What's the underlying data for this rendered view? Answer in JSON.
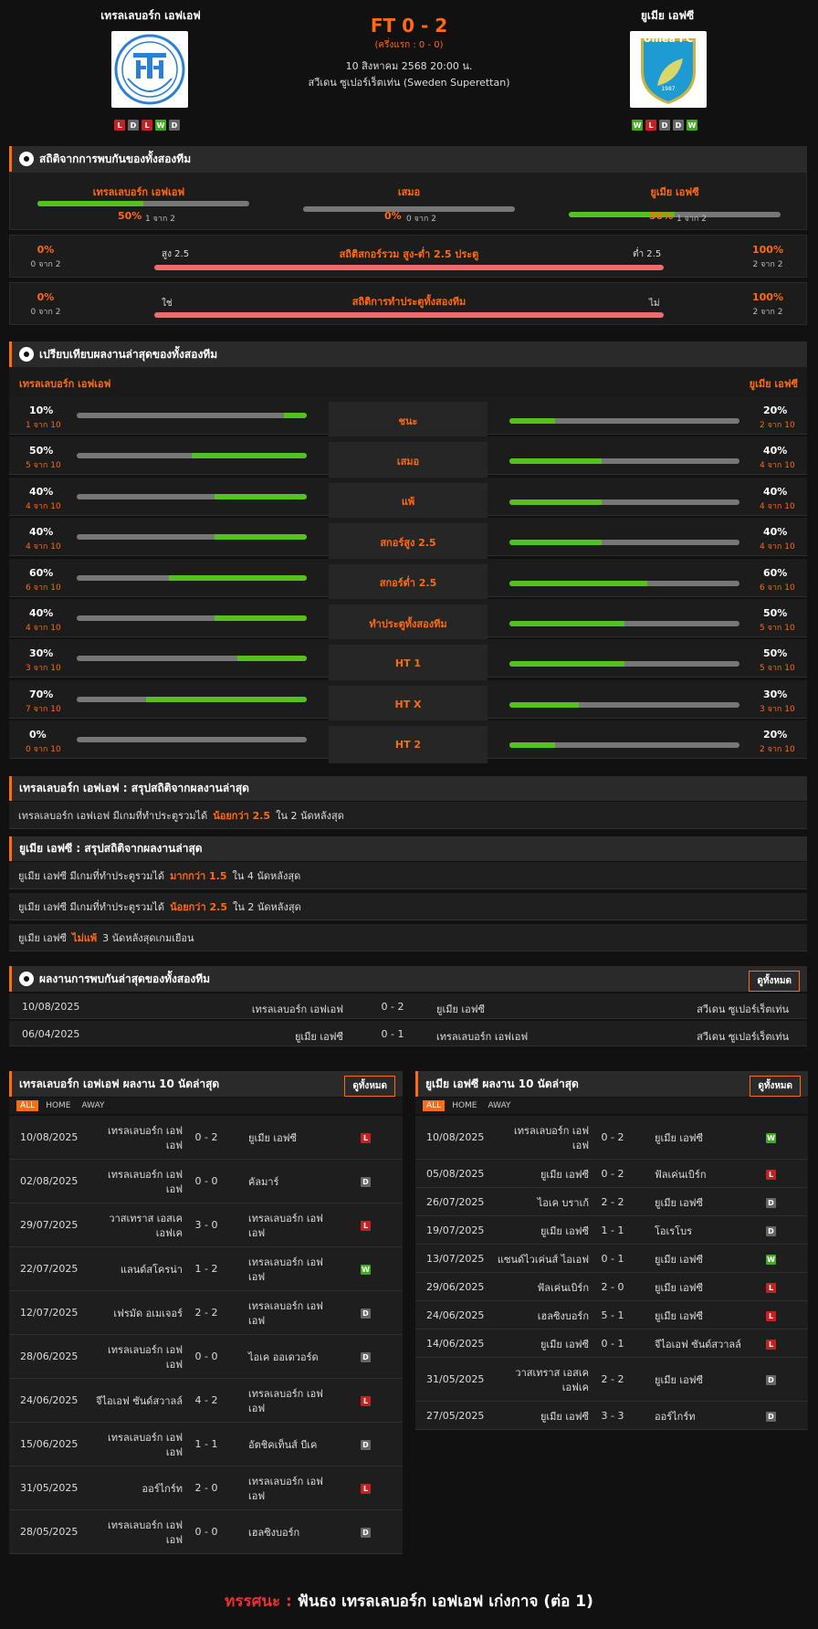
{
  "header": {
    "home": "เทรลเลบอร์ก เอฟเอฟ",
    "away": "ยูเมีย เอฟซี",
    "score": "FT 0 - 2",
    "halftime": "(ครึ่งแรก : 0 - 0)",
    "datetime": "10 สิงหาคม 2568 20:00 น.",
    "league": "สวีเดน ซูเปอร์เร็ตเท่น (Sweden Superettan)",
    "home_logo_text": "TRELLEBORGS FF",
    "away_logo_text": "Umeå FC",
    "away_logo_year": "1987",
    "home_form": [
      "L",
      "D",
      "L",
      "W",
      "D"
    ],
    "away_form": [
      "W",
      "L",
      "D",
      "D",
      "W"
    ]
  },
  "h2h_stats": {
    "title": "สถิติจากการพบกันของทั้งสองทีม",
    "home_label": "เทรลเลบอร์ก เอฟเอฟ",
    "home_pct": "50%",
    "home_sub": "1 จาก 2",
    "home_fill": 0.5,
    "draw_label": "เสมอ",
    "draw_pct": "0%",
    "draw_sub": "0 จาก 2",
    "draw_fill": 0,
    "away_label": "ยูเมีย เอฟซี",
    "away_pct": "50%",
    "away_sub": "1 จาก 2",
    "away_fill": 0.5,
    "ou": {
      "left_pct": "0%",
      "left_sub": "0 จาก 2",
      "left_label": "สูง 2.5",
      "title": "สถิติสกอร์รวม สูง-ต่ำ 2.5 ประตู",
      "right_label": "ต่ำ 2.5",
      "right_pct": "100%",
      "right_sub": "2 จาก 2"
    },
    "btts": {
      "left_pct": "0%",
      "left_sub": "0 จาก 2",
      "left_label": "ใช่",
      "title": "สถิติการทำประตูทั้งสองทีม",
      "right_label": "ไม่",
      "right_pct": "100%",
      "right_sub": "2 จาก 2"
    }
  },
  "compare": {
    "title": "เปรียบเทียบผลงานล่าสุดของทั้งสองทีม",
    "home": "เทรลเลบอร์ก เอฟเอฟ",
    "away": "ยูเมีย เอฟซี",
    "rows": [
      {
        "label": "ชนะ",
        "hp": "10%",
        "hs": "1 จาก 10",
        "hf": 0.1,
        "ap": "20%",
        "as": "2 จาก 10",
        "af": 0.2
      },
      {
        "label": "เสมอ",
        "hp": "50%",
        "hs": "5 จาก 10",
        "hf": 0.5,
        "ap": "40%",
        "as": "4 จาก 10",
        "af": 0.4
      },
      {
        "label": "แพ้",
        "hp": "40%",
        "hs": "4 จาก 10",
        "hf": 0.4,
        "ap": "40%",
        "as": "4 จาก 10",
        "af": 0.4
      },
      {
        "label": "สกอร์สูง 2.5",
        "hp": "40%",
        "hs": "4 จาก 10",
        "hf": 0.4,
        "ap": "40%",
        "as": "4 จาก 10",
        "af": 0.4
      },
      {
        "label": "สกอร์ต่ำ 2.5",
        "hp": "60%",
        "hs": "6 จาก 10",
        "hf": 0.6,
        "ap": "60%",
        "as": "6 จาก 10",
        "af": 0.6
      },
      {
        "label": "ทำประตูทั้งสองทีม",
        "hp": "40%",
        "hs": "4 จาก 10",
        "hf": 0.4,
        "ap": "50%",
        "as": "5 จาก 10",
        "af": 0.5
      },
      {
        "label": "HT 1",
        "hp": "30%",
        "hs": "3 จาก 10",
        "hf": 0.3,
        "ap": "50%",
        "as": "5 จาก 10",
        "af": 0.5
      },
      {
        "label": "HT X",
        "hp": "70%",
        "hs": "7 จาก 10",
        "hf": 0.7,
        "ap": "30%",
        "as": "3 จาก 10",
        "af": 0.3
      },
      {
        "label": "HT 2",
        "hp": "0%",
        "hs": "0 จาก 10",
        "hf": 0,
        "ap": "20%",
        "as": "2 จาก 10",
        "af": 0.2
      }
    ]
  },
  "summary_home": {
    "title": "เทรลเลบอร์ก เอฟเอฟ : สรุปสถิติจากผลงานล่าสุด",
    "lines": [
      {
        "pre": "เทรลเลบอร์ก เอฟเอฟ  มีเกมที่ทำประตูรวมได้",
        "hl": "น้อยกว่า  2.5",
        "post": "ใน 2 นัดหลังสุด"
      }
    ]
  },
  "summary_away": {
    "title": "ยูเมีย เอฟซี : สรุปสถิติจากผลงานล่าสุด",
    "lines": [
      {
        "pre": "ยูเมีย เอฟซี  มีเกมที่ทำประตูรวมได้",
        "hl": "มากกว่า  1.5",
        "post": "ใน 4 นัดหลังสุด"
      },
      {
        "pre": "ยูเมีย เอฟซี  มีเกมที่ทำประตูรวมได้",
        "hl": "น้อยกว่า  2.5",
        "post": "ใน 2 นัดหลังสุด"
      },
      {
        "pre": "ยูเมีย เอฟซี",
        "hl": "ไม่แพ้",
        "post": "3  นัดหลังสุดเกมเยือน"
      }
    ]
  },
  "h2h": {
    "title": "ผลงานการพบกันล่าสุดของทั้งสองทีม",
    "view_all": "ดูทั้งหมด",
    "rows": [
      {
        "date": "10/08/2025",
        "home": "เทรลเลบอร์ก เอฟเอฟ",
        "score": "0 - 2",
        "away": "ยูเมีย เอฟซี",
        "league": "สวีเดน ซูเปอร์เร็ตเท่น"
      },
      {
        "date": "06/04/2025",
        "home": "ยูเมีย เอฟซี",
        "score": "0 - 1",
        "away": "เทรลเลบอร์ก เอฟเอฟ",
        "league": "สวีเดน ซูเปอร์เร็ตเท่น"
      }
    ]
  },
  "last_home": {
    "title": "เทรลเลบอร์ก เอฟเอฟ ผลงาน 10 นัดล่าสุด",
    "view_all": "ดูทั้งหมด",
    "tabs": [
      "ALL",
      "HOME",
      "AWAY"
    ],
    "rows": [
      {
        "date": "10/08/2025",
        "home": "เทรลเลบอร์ก เอฟ\nเอฟ",
        "score": "0 - 2",
        "away": "ยูเมีย เอฟซี",
        "r": "L",
        "h": 48
      },
      {
        "date": "02/08/2025",
        "home": "เทรลเลบอร์ก เอฟ\nเอฟ",
        "score": "0 - 0",
        "away": "คัลมาร์",
        "r": "D",
        "h": 48
      },
      {
        "date": "29/07/2025",
        "home": "วาสเทราส เอสเค\nเอฟเค",
        "score": "3 - 0",
        "away": "เทรลเลบอร์ก เอฟ\nเอฟ",
        "r": "L",
        "h": 48
      },
      {
        "date": "22/07/2025",
        "home": "แลนด์สโครน่า",
        "score": "1 - 2",
        "away": "เทรลเลบอร์ก เอฟ\nเอฟ",
        "r": "W",
        "h": 48
      },
      {
        "date": "12/07/2025",
        "home": "เฟรมัด อเมเจอร์",
        "score": "2 - 2",
        "away": "เทรลเลบอร์ก เอฟ\nเอฟ",
        "r": "D",
        "h": 48
      },
      {
        "date": "28/06/2025",
        "home": "เทรลเลบอร์ก เอฟ\nเอฟ",
        "score": "0 - 0",
        "away": "ไอเค ออเดวอร์ด",
        "r": "D",
        "h": 48
      },
      {
        "date": "24/06/2025",
        "home": "จีไอเอฟ ซันด์สวาลล์",
        "score": "4 - 2",
        "away": "เทรลเลบอร์ก เอฟ\nเอฟ",
        "r": "L",
        "h": 48
      },
      {
        "date": "15/06/2025",
        "home": "เทรลเลบอร์ก เอฟ\nเอฟ",
        "score": "1 - 1",
        "away": "อัตชิคเท็นส์ บีเค",
        "r": "D",
        "h": 48
      },
      {
        "date": "31/05/2025",
        "home": "ออร์ไกร์ท",
        "score": "2 - 0",
        "away": "เทรลเลบอร์ก เอฟ\nเอฟ",
        "r": "L",
        "h": 48
      },
      {
        "date": "28/05/2025",
        "home": "เทรลเลบอร์ก เอฟ\nเอฟ",
        "score": "0 - 0",
        "away": "เฮลซิงบอร์ก",
        "r": "D",
        "h": 48
      }
    ]
  },
  "last_away": {
    "title": "ยูเมีย เอฟซี ผลงาน 10 นัดล่าสุด",
    "view_all": "ดูทั้งหมด",
    "tabs": [
      "ALL",
      "HOME",
      "AWAY"
    ],
    "rows": [
      {
        "date": "10/08/2025",
        "home": "เทรลเลบอร์ก เอฟ\nเอฟ",
        "score": "0 - 2",
        "away": "ยูเมีย เอฟซี",
        "r": "W",
        "h": 48
      },
      {
        "date": "05/08/2025",
        "home": "ยูเมีย เอฟซี",
        "score": "0 - 2",
        "away": "ฟัลเค่นเบิร์ก",
        "r": "L",
        "h": 31
      },
      {
        "date": "26/07/2025",
        "home": "ไอเค บราเก้",
        "score": "2 - 2",
        "away": "ยูเมีย เอฟซี",
        "r": "D",
        "h": 31
      },
      {
        "date": "19/07/2025",
        "home": "ยูเมีย เอฟซี",
        "score": "1 - 1",
        "away": "โอเรโบร",
        "r": "D",
        "h": 31
      },
      {
        "date": "13/07/2025",
        "home": "แซนด์ไวเค่นส์ ไอเอฟ",
        "score": "0 - 1",
        "away": "ยูเมีย เอฟซี",
        "r": "W",
        "h": 31
      },
      {
        "date": "29/06/2025",
        "home": "ฟัลเค่นเบิร์ก",
        "score": "2 - 0",
        "away": "ยูเมีย เอฟซี",
        "r": "L",
        "h": 31
      },
      {
        "date": "24/06/2025",
        "home": "เฮลซิงบอร์ก",
        "score": "5 - 1",
        "away": "ยูเมีย เอฟซี",
        "r": "L",
        "h": 31
      },
      {
        "date": "14/06/2025",
        "home": "ยูเมีย เอฟซี",
        "score": "0 - 1",
        "away": "จีไอเอฟ ซันด์สวาลล์",
        "r": "L",
        "h": 31
      },
      {
        "date": "31/05/2025",
        "home": "วาสเทราส เอสเค\nเอฟเค",
        "score": "2 - 2",
        "away": "ยูเมีย เอฟซี",
        "r": "D",
        "h": 48
      },
      {
        "date": "27/05/2025",
        "home": "ยูเมีย เอฟซี",
        "score": "3 - 3",
        "away": "ออร์ไกร์ท",
        "r": "D",
        "h": 31
      }
    ]
  },
  "prediction": {
    "label": "ทรรศนะ :",
    "text": "ฟันธง เทรลเลบอร์ก เอฟเอฟ เก่งกาจ (ต่อ 1)"
  },
  "colors": {
    "accent": "#ff6a13",
    "win": "#3fae1e",
    "lose": "#c82020",
    "draw": "#666666",
    "bar_green": "#55c11e",
    "bar_red": "#f06c6c"
  }
}
